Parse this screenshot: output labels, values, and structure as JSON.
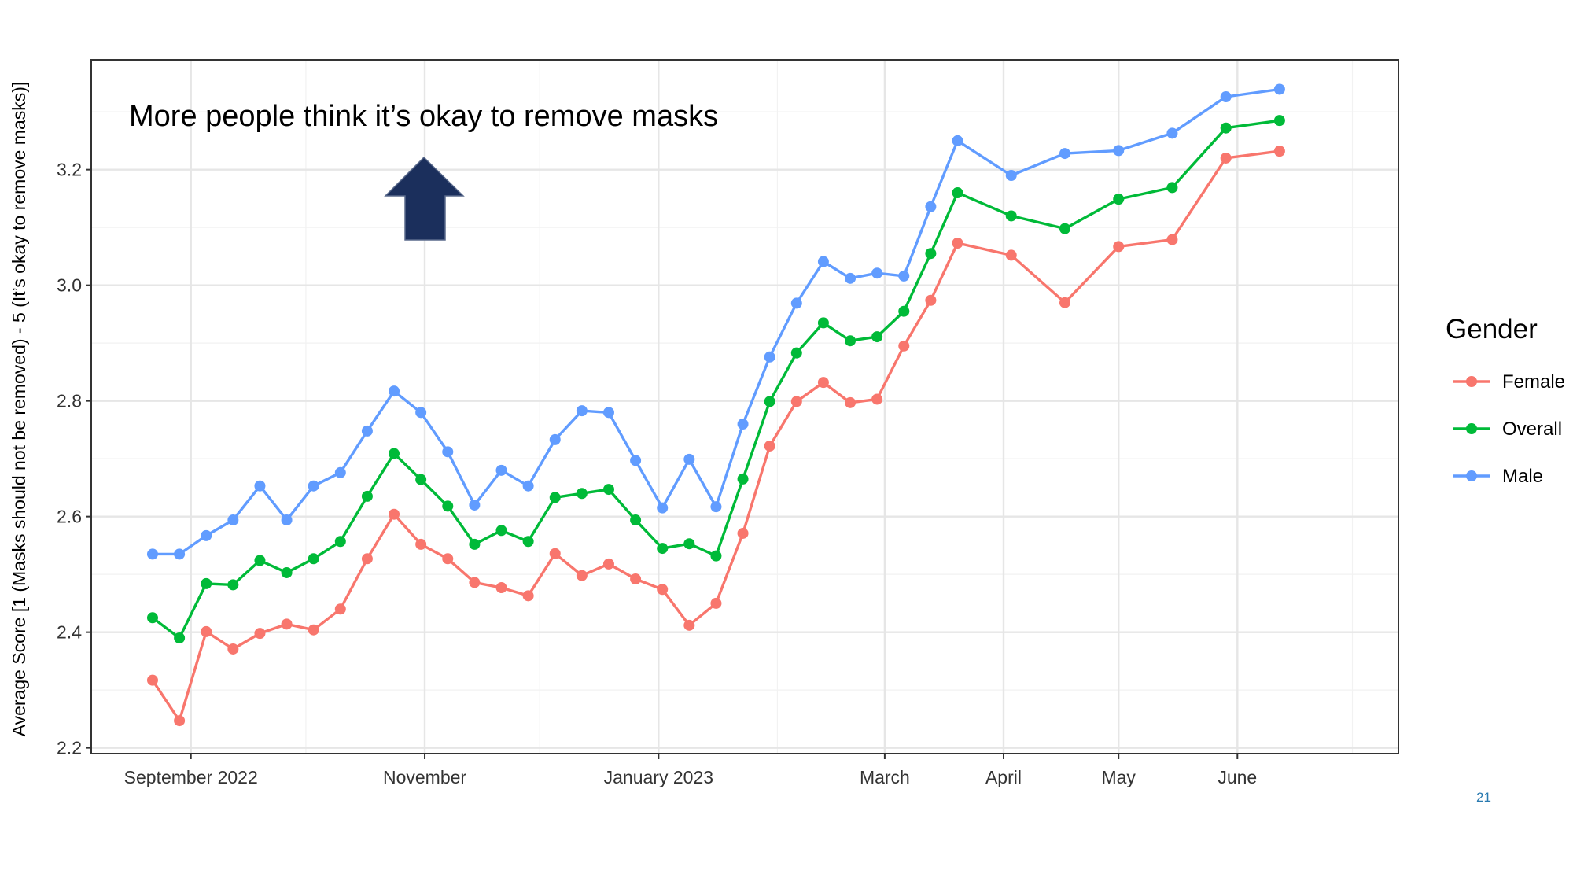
{
  "slide": {
    "page_number": "21"
  },
  "chart_data": {
    "type": "line",
    "annotation": "More people think it’s okay to remove masks",
    "annotation_icon": "up-arrow-icon",
    "ylabel": "Average Score [1 (Masks should not be removed) - 5 (It’s okay to remove masks)]",
    "xlabel": "",
    "ylim": [
      2.19,
      3.39
    ],
    "y_ticks": [
      2.2,
      2.4,
      2.6,
      2.8,
      3.0,
      3.2
    ],
    "y_tick_labels": [
      "2.2",
      "2.4",
      "2.6",
      "2.8",
      "3.0",
      "3.2"
    ],
    "xlim": [
      "2022-08-06",
      "2023-07-13"
    ],
    "x_ticks": [
      {
        "date": "2022-09-01",
        "label": "September 2022"
      },
      {
        "date": "2022-11-01",
        "label": "November"
      },
      {
        "date": "2023-01-01",
        "label": "January 2023"
      },
      {
        "date": "2023-03-01",
        "label": "March"
      },
      {
        "date": "2023-04-01",
        "label": "April"
      },
      {
        "date": "2023-05-01",
        "label": "May"
      },
      {
        "date": "2023-06-01",
        "label": "June"
      }
    ],
    "x_minor_ticks": [
      "2022-10-01",
      "2022-12-01",
      "2023-02-01",
      "2023-07-01"
    ],
    "grid": true,
    "legend_title": "Gender",
    "legend_position": "right",
    "x": [
      "2022-08-22",
      "2022-08-29",
      "2022-09-05",
      "2022-09-12",
      "2022-09-19",
      "2022-09-26",
      "2022-10-03",
      "2022-10-10",
      "2022-10-17",
      "2022-10-24",
      "2022-10-31",
      "2022-11-07",
      "2022-11-14",
      "2022-11-21",
      "2022-11-28",
      "2022-12-05",
      "2022-12-12",
      "2022-12-19",
      "2022-12-26",
      "2023-01-02",
      "2023-01-09",
      "2023-01-16",
      "2023-01-23",
      "2023-01-30",
      "2023-02-06",
      "2023-02-13",
      "2023-02-20",
      "2023-02-27",
      "2023-03-06",
      "2023-03-13",
      "2023-03-20",
      "2023-04-03",
      "2023-04-17",
      "2023-05-01",
      "2023-05-15",
      "2023-05-29",
      "2023-06-12"
    ],
    "series": [
      {
        "name": "Female",
        "color": "#F8766D",
        "values": [
          2.317,
          2.247,
          2.401,
          2.371,
          2.398,
          2.414,
          2.404,
          2.44,
          2.527,
          2.604,
          2.552,
          2.527,
          2.486,
          2.477,
          2.463,
          2.536,
          2.498,
          2.518,
          2.492,
          2.474,
          2.412,
          2.45,
          2.571,
          2.722,
          2.799,
          2.832,
          2.797,
          2.803,
          2.895,
          2.974,
          3.073,
          3.052,
          2.97,
          3.067,
          3.079,
          3.22,
          3.232
        ]
      },
      {
        "name": "Overall",
        "color": "#00BA38",
        "values": [
          2.425,
          2.39,
          2.484,
          2.482,
          2.524,
          2.503,
          2.527,
          2.557,
          2.635,
          2.709,
          2.664,
          2.618,
          2.552,
          2.576,
          2.557,
          2.633,
          2.64,
          2.647,
          2.594,
          2.545,
          2.553,
          2.532,
          2.665,
          2.799,
          2.883,
          2.935,
          2.904,
          2.911,
          2.955,
          3.055,
          3.16,
          3.12,
          3.098,
          3.149,
          3.169,
          3.272,
          3.285
        ]
      },
      {
        "name": "Male",
        "color": "#619CFF",
        "values": [
          2.535,
          2.535,
          2.567,
          2.594,
          2.653,
          2.594,
          2.653,
          2.676,
          2.748,
          2.817,
          2.78,
          2.712,
          2.62,
          2.68,
          2.653,
          2.733,
          2.783,
          2.78,
          2.697,
          2.615,
          2.699,
          2.617,
          2.76,
          2.876,
          2.969,
          3.041,
          3.012,
          3.021,
          3.016,
          3.136,
          3.25,
          3.19,
          3.228,
          3.233,
          3.263,
          3.326,
          3.339
        ]
      }
    ]
  }
}
